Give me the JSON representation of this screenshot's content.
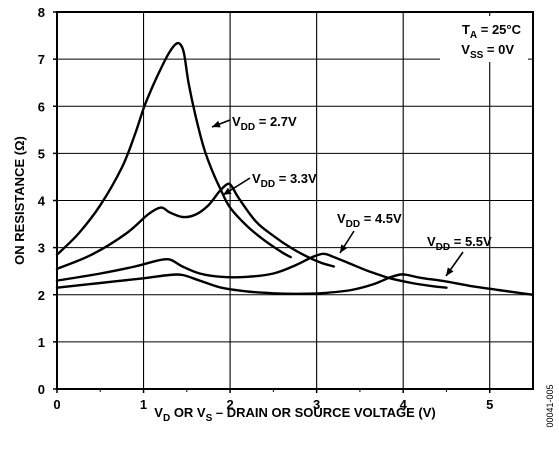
{
  "chart_data": {
    "type": "line",
    "xlabel_parts": [
      "V",
      "D",
      " OR V",
      "S",
      " – DRAIN OR SOURCE VOLTAGE (V)"
    ],
    "ylabel": "ON RESISTANCE (Ω)",
    "xlim": [
      0,
      5.5
    ],
    "ylim": [
      0,
      8
    ],
    "x_ticks": [
      0,
      1,
      2,
      3,
      4,
      5
    ],
    "y_ticks": [
      0,
      1,
      2,
      3,
      4,
      5,
      6,
      7,
      8
    ],
    "grid": true,
    "conditions": {
      "ta_parts": [
        "T",
        "A",
        " = 25°C"
      ],
      "vss_parts": [
        "V",
        "SS",
        " = 0V"
      ]
    },
    "series": [
      {
        "name_parts": [
          "V",
          "DD",
          " = 2.7V"
        ],
        "x": [
          0,
          0.25,
          0.5,
          0.75,
          0.9,
          1.0,
          1.1,
          1.2,
          1.3,
          1.38,
          1.43,
          1.47,
          1.52,
          1.6,
          1.7,
          1.8,
          1.9,
          2.0,
          2.2,
          2.4,
          2.6,
          2.7
        ],
        "y": [
          2.85,
          3.3,
          3.9,
          4.7,
          5.4,
          5.95,
          6.4,
          6.8,
          7.15,
          7.33,
          7.3,
          7.1,
          6.5,
          5.8,
          5.1,
          4.6,
          4.2,
          3.85,
          3.45,
          3.15,
          2.9,
          2.8
        ]
      },
      {
        "name_parts": [
          "V",
          "DD",
          " = 3.3V"
        ],
        "x": [
          0,
          0.4,
          0.8,
          1.05,
          1.2,
          1.3,
          1.45,
          1.6,
          1.75,
          1.88,
          1.97,
          2.02,
          2.1,
          2.3,
          2.5,
          2.7,
          2.9,
          3.05,
          3.2
        ],
        "y": [
          2.55,
          2.85,
          3.3,
          3.7,
          3.85,
          3.75,
          3.65,
          3.7,
          3.9,
          4.2,
          4.35,
          4.3,
          4.05,
          3.55,
          3.25,
          3.0,
          2.8,
          2.68,
          2.6
        ]
      },
      {
        "name_parts": [
          "V",
          "DD",
          " = 4.5V"
        ],
        "x": [
          0,
          0.5,
          0.9,
          1.15,
          1.3,
          1.45,
          1.65,
          1.9,
          2.2,
          2.5,
          2.75,
          2.95,
          3.08,
          3.2,
          3.4,
          3.6,
          3.85,
          4.1,
          4.35,
          4.5
        ],
        "y": [
          2.3,
          2.45,
          2.6,
          2.72,
          2.75,
          2.6,
          2.45,
          2.38,
          2.38,
          2.45,
          2.62,
          2.8,
          2.87,
          2.8,
          2.65,
          2.5,
          2.35,
          2.25,
          2.18,
          2.15
        ]
      },
      {
        "name_parts": [
          "V",
          "DD",
          " = 5.5V"
        ],
        "x": [
          0,
          0.5,
          1.0,
          1.3,
          1.45,
          1.65,
          1.9,
          2.2,
          2.5,
          2.8,
          3.1,
          3.4,
          3.65,
          3.85,
          3.97,
          4.05,
          4.2,
          4.5,
          4.8,
          5.1,
          5.5
        ],
        "y": [
          2.15,
          2.25,
          2.35,
          2.42,
          2.42,
          2.3,
          2.15,
          2.07,
          2.03,
          2.02,
          2.04,
          2.1,
          2.22,
          2.37,
          2.43,
          2.42,
          2.36,
          2.28,
          2.18,
          2.1,
          2.0
        ]
      }
    ]
  },
  "figure_id": "00041-005"
}
